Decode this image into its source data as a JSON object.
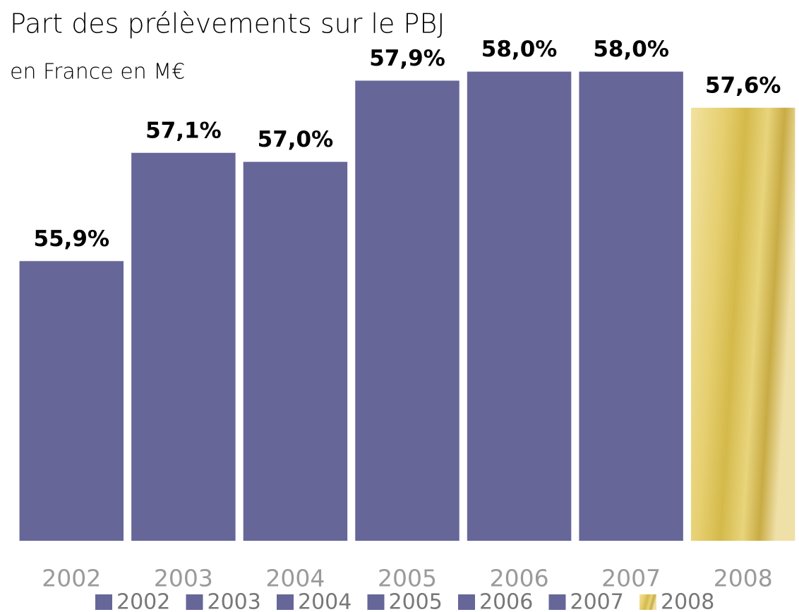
{
  "chart_data": {
    "type": "bar",
    "title": "Part des prélèvements sur le PBJ",
    "subtitle": "en France en M€",
    "categories": [
      "2002",
      "2003",
      "2004",
      "2005",
      "2006",
      "2007",
      "2008"
    ],
    "values": [
      55.9,
      57.1,
      57.0,
      57.9,
      58.0,
      58.0,
      57.6
    ],
    "value_labels": [
      "55,9%",
      "57,1%",
      "57,0%",
      "57,9%",
      "58,0%",
      "58,0%",
      "57,6%"
    ],
    "colors": [
      "#666699",
      "#666699",
      "#666699",
      "#666699",
      "#666699",
      "#666699",
      "#d4b94a"
    ],
    "ylim": [
      52.8,
      58.2
    ],
    "legend": "bottom"
  }
}
